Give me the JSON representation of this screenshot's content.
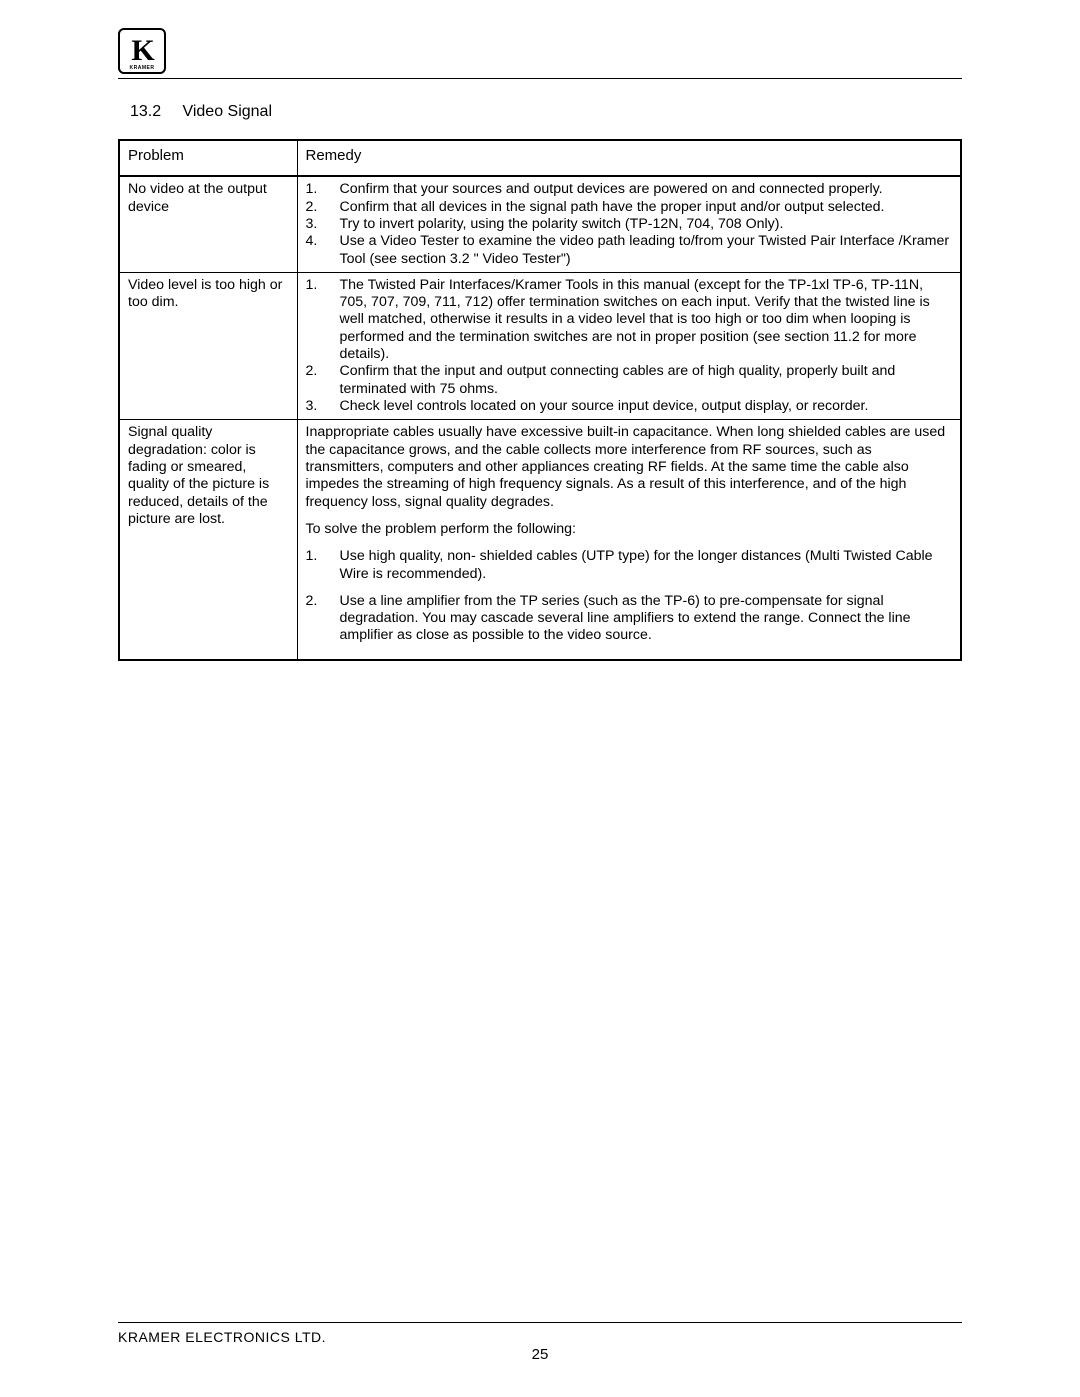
{
  "logo": {
    "letter": "K",
    "brand": "KRAMER"
  },
  "section": {
    "number": "13.2",
    "title": "Video Signal"
  },
  "table": {
    "headers": {
      "problem": "Problem",
      "remedy": "Remedy"
    },
    "rows": [
      {
        "problem": "No video at the output device",
        "remedy_items": [
          "Confirm that your sources and output devices are powered on and connected properly.",
          "Confirm that all devices in the signal path have the proper input and/or output selected.",
          "Try to invert polarity, using the polarity switch (TP-12N, 704, 708 Only).",
          "Use a Video Tester to examine the video path leading to/from your Twisted Pair Interface /Kramer Tool (see section 3.2 \" Video Tester\")"
        ]
      },
      {
        "problem": "Video level is too high or too dim.",
        "remedy_items": [
          "The Twisted Pair Interfaces/Kramer Tools in this manual (except for the TP-1xl TP-6, TP-11N, 705, 707, 709, 711, 712) offer termination switches on each input. Verify that the twisted line is well matched, otherwise it results in a video level that is too high or too dim when looping is performed and the termination switches are not in proper position (see section 11.2 for more details).",
          "Confirm that the input and output connecting cables are of high quality, properly built and terminated with 75 ohms.",
          "Check level controls located on your source input device, output display, or recorder."
        ]
      },
      {
        "problem": "Signal quality degradation: color is fading or smeared, quality of the picture is reduced, details of the picture are lost.",
        "remedy_intro": "Inappropriate cables usually have excessive built-in capacitance. When long shielded cables are used the capacitance grows, and the cable collects more interference from RF sources, such as transmitters, computers and other appliances creating RF fields. At the same time the cable also impedes the streaming of high frequency signals. As a result of this interference, and of the high frequency loss, signal quality degrades.",
        "remedy_lead": "To solve the problem perform the following:",
        "remedy_items": [
          "Use high quality, non- shielded cables (UTP type) for the longer distances (Multi Twisted Cable Wire is recommended).",
          " Use a line amplifier from the TP series (such as the TP-6) to pre-compensate for signal degradation. You may cascade several line amplifiers to extend the range. Connect the line amplifier as close as possible to the video source."
        ]
      }
    ]
  },
  "footer": {
    "company": "KRAMER ELECTRONICS LTD.",
    "page": "25"
  }
}
